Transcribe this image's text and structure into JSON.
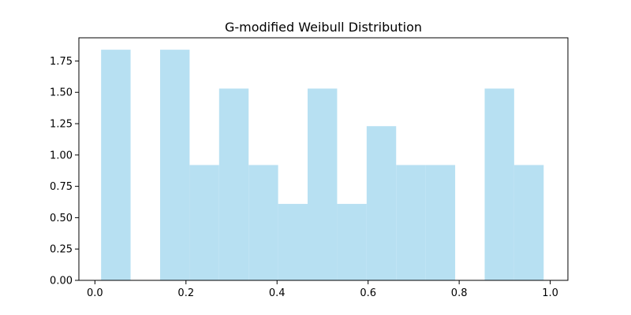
{
  "chart_data": {
    "type": "bar",
    "title": "G-modified Weibull Distribution",
    "xlabel": "",
    "ylabel": "",
    "xlim": [
      -0.0352,
      1.0388
    ],
    "ylim": [
      0,
      1.935
    ],
    "grid": false,
    "legend": false,
    "bar_color": "#b7e0f2",
    "x_ticks": [
      0.0,
      0.2,
      0.4,
      0.6,
      0.8,
      1.0
    ],
    "x_tick_labels": [
      "0.0",
      "0.2",
      "0.4",
      "0.6",
      "0.8",
      "1.0"
    ],
    "y_ticks": [
      0,
      0.25,
      0.5,
      0.75,
      1.0,
      1.25,
      1.5,
      1.75
    ],
    "y_tick_labels": [
      "0.00",
      "0.25",
      "0.50",
      "0.75",
      "1.00",
      "1.25",
      "1.50",
      "1.75"
    ],
    "bin_edges": [
      0.0136,
      0.0784,
      0.1432,
      0.208,
      0.2728,
      0.3376,
      0.4024,
      0.4672,
      0.532,
      0.5968,
      0.6616,
      0.7264,
      0.7912,
      0.856,
      0.9208,
      0.9856
    ],
    "values": [
      1.84,
      0.0,
      1.84,
      0.92,
      1.53,
      0.92,
      0.61,
      1.53,
      0.61,
      1.23,
      0.92,
      0.92,
      0.0,
      1.53,
      0.92
    ]
  }
}
